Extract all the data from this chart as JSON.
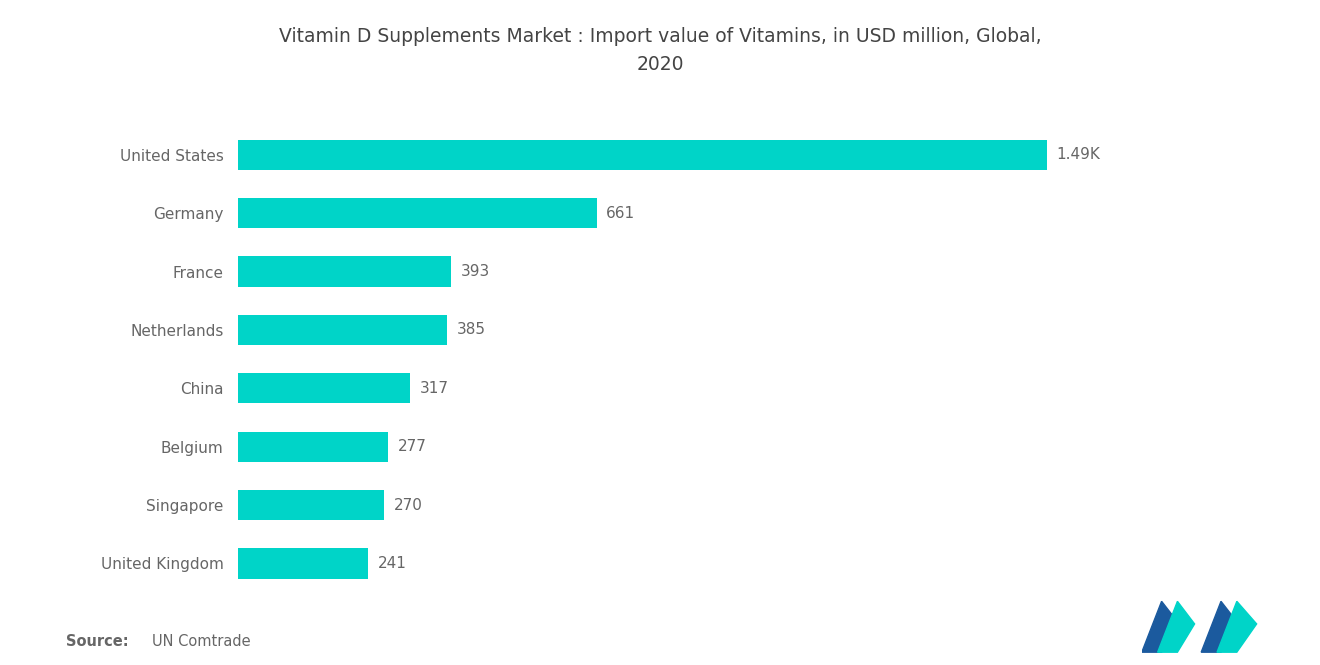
{
  "title": "Vitamin D Supplements Market : Import value of Vitamins, in USD million, Global,\n2020",
  "categories": [
    "United States",
    "Germany",
    "France",
    "Netherlands",
    "China",
    "Belgium",
    "Singapore",
    "United Kingdom"
  ],
  "values": [
    1490,
    661,
    393,
    385,
    317,
    277,
    270,
    241
  ],
  "labels": [
    "1.49K",
    "661",
    "393",
    "385",
    "317",
    "277",
    "270",
    "241"
  ],
  "bar_color": "#00D4C8",
  "background_color": "#FFFFFF",
  "text_color": "#666666",
  "title_color": "#444444",
  "xlim": [
    0,
    1750
  ],
  "title_fontsize": 13.5,
  "label_fontsize": 11,
  "tick_fontsize": 11,
  "source_fontsize": 10.5,
  "bar_height": 0.52,
  "logo_dark": "#1B5A9E",
  "logo_teal": "#00D4C8"
}
